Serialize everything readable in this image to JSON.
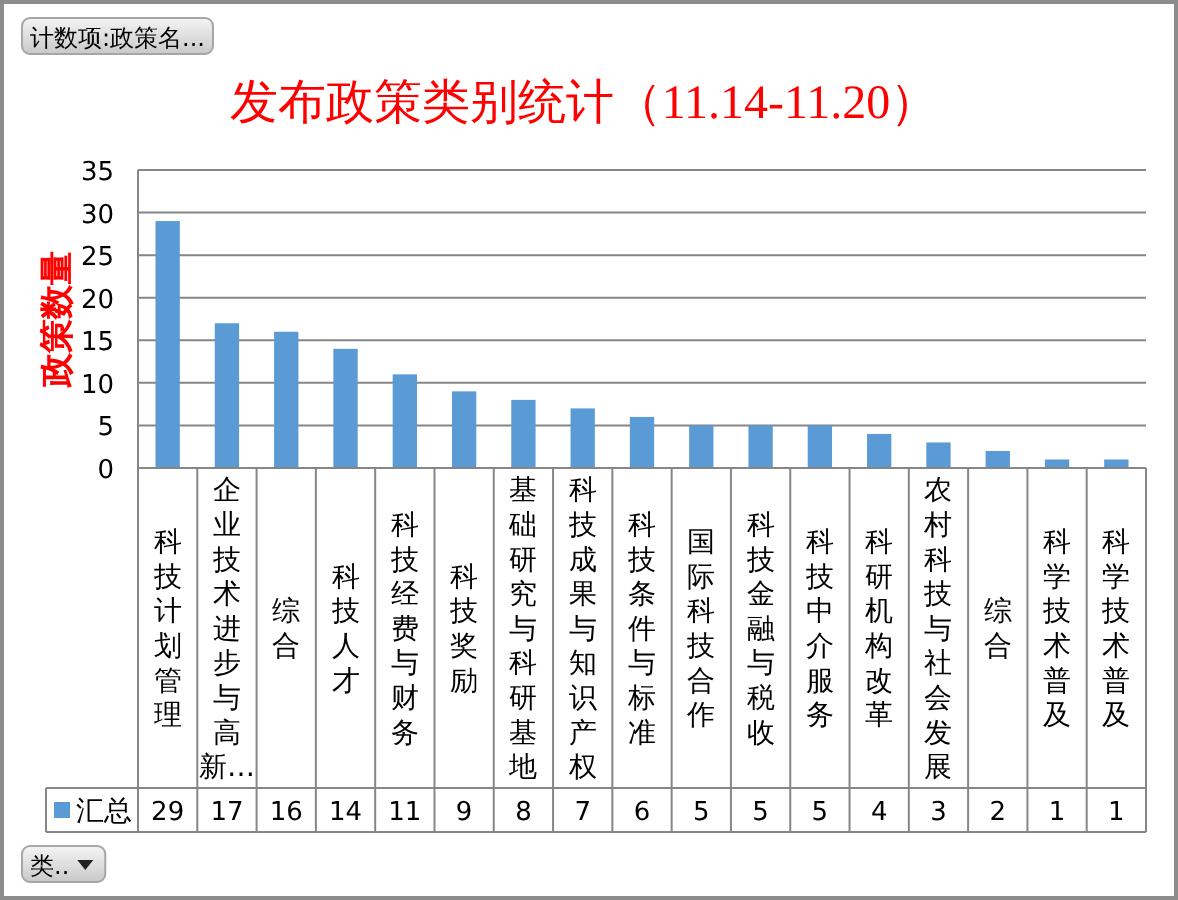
{
  "chart_data": {
    "type": "bar",
    "title": "发布政策类别统计（11.14-11.20）",
    "ylabel": "政策数量",
    "categories": [
      "科技计划管理",
      "企业技术进步与高新…",
      "综合",
      "科技人才",
      "科技经费与财务",
      "科技奖励",
      "基础研究与科研基地",
      "科技成果与知识产权",
      "科技条件与标准",
      "国际科技合作",
      "科技金融与税收",
      "科技中介服务",
      "科研机构改革",
      "农村科技与社会发展",
      "综合",
      "科学技术普及",
      "科学技术普及"
    ],
    "series": [
      {
        "name": "汇总",
        "color": "#5b9bd5",
        "values": [
          29,
          17,
          16,
          14,
          11,
          9,
          8,
          7,
          6,
          5,
          5,
          5,
          4,
          3,
          2,
          1,
          1
        ]
      }
    ],
    "ylim": [
      0,
      35
    ],
    "yticks": [
      0,
      5,
      10,
      15,
      20,
      25,
      30,
      35
    ],
    "grid": "y",
    "legend": "bottom",
    "data_labels": true,
    "annotations": [
      "计数项:政策名...",
      "类.."
    ]
  }
}
